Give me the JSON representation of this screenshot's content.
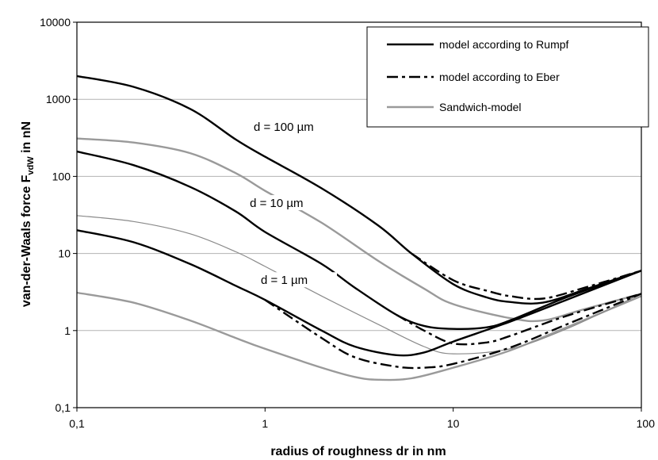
{
  "chart_data": {
    "type": "line",
    "title": "",
    "xlabel": "radius of roughness dr  in nm",
    "ylabel_main": "van-der-Waals force F",
    "ylabel_sub": "vdW",
    "ylabel_unit": " in nN",
    "xscale": "log",
    "yscale": "log",
    "xlim": [
      0.1,
      100
    ],
    "ylim": [
      0.1,
      10000
    ],
    "grid": "horizontal",
    "legend_position": "top-right",
    "x_ticks": [
      {
        "value": 0.1,
        "label": "0,1"
      },
      {
        "value": 1,
        "label": "1"
      },
      {
        "value": 10,
        "label": "10"
      },
      {
        "value": 100,
        "label": "100"
      }
    ],
    "y_ticks": [
      {
        "value": 0.1,
        "label": "0,1"
      },
      {
        "value": 1,
        "label": "1"
      },
      {
        "value": 10,
        "label": "10"
      },
      {
        "value": 100,
        "label": "100"
      },
      {
        "value": 1000,
        "label": "1000"
      },
      {
        "value": 10000,
        "label": "10000"
      }
    ],
    "legend": [
      {
        "label": "model according to Rumpf",
        "style": "solid-black"
      },
      {
        "label": "model according to Eber",
        "style": "dashed-black"
      },
      {
        "label": "Sandwich-model",
        "style": "solid-gray"
      }
    ],
    "annotations": [
      {
        "text": "d = 100 µm",
        "x": 0.87,
        "y": 410
      },
      {
        "text": "d = 10 µm",
        "x": 0.83,
        "y": 42
      },
      {
        "text": "d = 1 µm",
        "x": 0.95,
        "y": 4.2
      }
    ],
    "series": [
      {
        "model": "Rumpf",
        "group": "d = 100 µm",
        "style": "solid-black",
        "points": [
          [
            0.1,
            2000
          ],
          [
            0.2,
            1450
          ],
          [
            0.4,
            750
          ],
          [
            0.7,
            300
          ],
          [
            1,
            180
          ],
          [
            2,
            70
          ],
          [
            4,
            23
          ],
          [
            6,
            10
          ],
          [
            10,
            4
          ],
          [
            15,
            2.7
          ],
          [
            20,
            2.35
          ],
          [
            30,
            2.3
          ],
          [
            50,
            3.4
          ],
          [
            100,
            6.0
          ]
        ]
      },
      {
        "model": "Eber",
        "group": "d = 100 µm",
        "style": "dashed-black",
        "points": [
          [
            6,
            10
          ],
          [
            10,
            4.5
          ],
          [
            15,
            3.3
          ],
          [
            20,
            2.8
          ],
          [
            30,
            2.6
          ],
          [
            50,
            3.6
          ],
          [
            100,
            6.0
          ]
        ]
      },
      {
        "model": "Sandwich",
        "group": "d = 100 µm",
        "style": "solid-gray",
        "points": [
          [
            0.1,
            310
          ],
          [
            0.2,
            275
          ],
          [
            0.4,
            200
          ],
          [
            0.7,
            110
          ],
          [
            1,
            65
          ],
          [
            2,
            25
          ],
          [
            4,
            8
          ],
          [
            7,
            3.5
          ],
          [
            10,
            2.2
          ],
          [
            20,
            1.45
          ],
          [
            30,
            1.35
          ],
          [
            50,
            1.9
          ],
          [
            100,
            3.0
          ]
        ]
      },
      {
        "model": "Rumpf",
        "group": "d = 10 µm",
        "style": "solid-black",
        "points": [
          [
            0.1,
            210
          ],
          [
            0.2,
            140
          ],
          [
            0.4,
            73
          ],
          [
            0.7,
            35
          ],
          [
            1,
            19
          ],
          [
            2,
            7.3
          ],
          [
            3,
            3.6
          ],
          [
            5,
            1.6
          ],
          [
            7,
            1.15
          ],
          [
            10,
            1.05
          ],
          [
            15,
            1.1
          ],
          [
            20,
            1.35
          ],
          [
            40,
            2.7
          ],
          [
            100,
            6.0
          ]
        ]
      },
      {
        "model": "Eber",
        "group": "d = 10 µm",
        "style": "dashed-black",
        "points": [
          [
            5,
            1.6
          ],
          [
            7,
            1.0
          ],
          [
            10,
            0.68
          ],
          [
            15,
            0.7
          ],
          [
            20,
            0.85
          ],
          [
            40,
            1.55
          ],
          [
            100,
            3.0
          ]
        ]
      },
      {
        "model": "Sandwich",
        "group": "d = 10 µm",
        "style": "solid-gray-thin",
        "points": [
          [
            0.1,
            31
          ],
          [
            0.2,
            26
          ],
          [
            0.4,
            18
          ],
          [
            0.7,
            10.5
          ],
          [
            1,
            6.8
          ],
          [
            2,
            2.8
          ],
          [
            4,
            1.2
          ],
          [
            7,
            0.62
          ],
          [
            10,
            0.5
          ],
          [
            20,
            0.58
          ],
          [
            40,
            1.05
          ],
          [
            100,
            3.0
          ]
        ]
      },
      {
        "model": "Rumpf",
        "group": "d = 1 µm",
        "style": "solid-black",
        "points": [
          [
            0.1,
            20
          ],
          [
            0.2,
            14
          ],
          [
            0.4,
            7.3
          ],
          [
            0.7,
            3.8
          ],
          [
            1,
            2.5
          ],
          [
            2,
            1.0
          ],
          [
            3,
            0.62
          ],
          [
            5,
            0.48
          ],
          [
            7,
            0.52
          ],
          [
            10,
            0.72
          ],
          [
            20,
            1.3
          ],
          [
            40,
            2.5
          ],
          [
            100,
            6.0
          ]
        ]
      },
      {
        "model": "Eber",
        "group": "d = 1 µm",
        "style": "dashed-black",
        "points": [
          [
            1,
            2.5
          ],
          [
            2,
            0.8
          ],
          [
            3,
            0.45
          ],
          [
            5,
            0.34
          ],
          [
            7,
            0.33
          ],
          [
            10,
            0.37
          ],
          [
            20,
            0.6
          ],
          [
            40,
            1.2
          ],
          [
            100,
            3.0
          ]
        ]
      },
      {
        "model": "Sandwich",
        "group": "d = 1 µm",
        "style": "solid-gray",
        "points": [
          [
            0.1,
            3.1
          ],
          [
            0.2,
            2.3
          ],
          [
            0.4,
            1.35
          ],
          [
            0.7,
            0.8
          ],
          [
            1,
            0.58
          ],
          [
            2,
            0.33
          ],
          [
            3,
            0.25
          ],
          [
            4,
            0.23
          ],
          [
            6,
            0.24
          ],
          [
            10,
            0.33
          ],
          [
            20,
            0.55
          ],
          [
            40,
            1.1
          ],
          [
            100,
            2.8
          ]
        ]
      }
    ]
  }
}
